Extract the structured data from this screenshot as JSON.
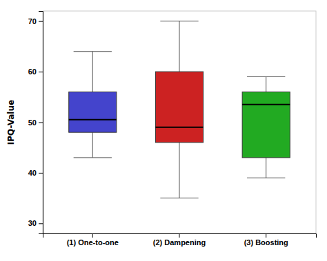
{
  "chart_data": {
    "type": "box",
    "ylabel": "IPQ-Value",
    "categories": [
      "(1) One-to-one",
      "(2) Dampening",
      "(3) Boosting"
    ],
    "colors": [
      "#4444cc",
      "#cc2222",
      "#22aa22"
    ],
    "q1": [
      48,
      46,
      43
    ],
    "median": [
      50.5,
      49,
      53.5
    ],
    "q3": [
      56,
      60,
      56
    ],
    "whisker_low": [
      43,
      35,
      39
    ],
    "whisker_high": [
      64,
      70,
      59
    ],
    "ylim": [
      28,
      72
    ],
    "yticks": [
      30,
      40,
      50,
      60,
      70
    ],
    "grid": false
  }
}
